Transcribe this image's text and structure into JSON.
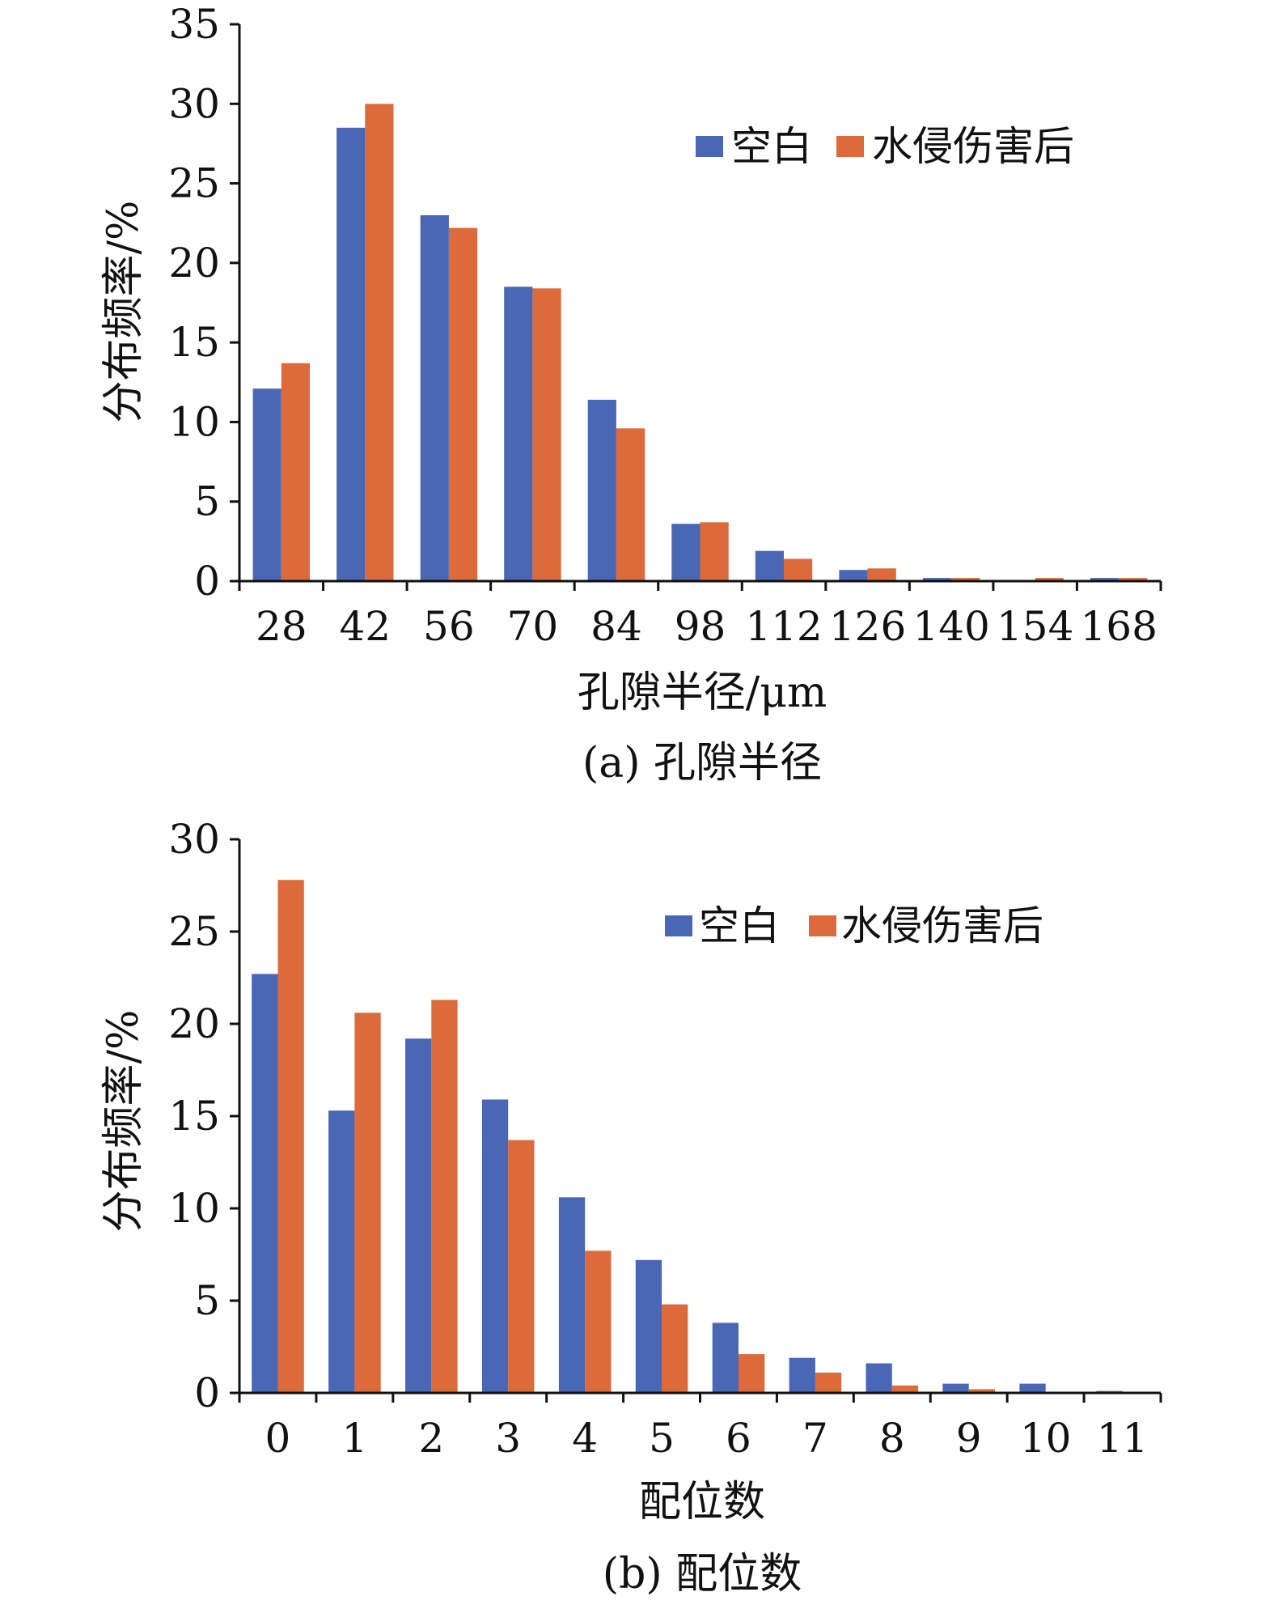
{
  "colors": {
    "blank": "#4a67b5",
    "water": "#dd6a3a",
    "axis": "#111111"
  },
  "charts": [
    {
      "caption": "(a) 孔隙半径",
      "chart_data": {
        "type": "bar",
        "categories": [
          "28",
          "42",
          "56",
          "70",
          "84",
          "98",
          "112",
          "126",
          "140",
          "154",
          "168"
        ],
        "series": [
          {
            "name": "空白",
            "values": [
              12.1,
              28.5,
              23.0,
              18.5,
              11.4,
              3.6,
              1.9,
              0.7,
              0.2,
              0.0,
              0.2
            ]
          },
          {
            "name": "水侵伤害后",
            "values": [
              13.7,
              30.0,
              22.2,
              18.4,
              9.6,
              3.7,
              1.4,
              0.8,
              0.2,
              0.2,
              0.2
            ]
          }
        ],
        "xlabel": "孔隙半径/μm",
        "ylabel": "分布频率/%",
        "ylim": [
          0,
          35
        ],
        "yticks": [
          "0",
          "5",
          "10",
          "15",
          "20",
          "25",
          "30",
          "35"
        ],
        "grid": false,
        "legend": "top-right"
      }
    },
    {
      "caption": "(b) 配位数",
      "chart_data": {
        "type": "bar",
        "categories": [
          "0",
          "1",
          "2",
          "3",
          "4",
          "5",
          "6",
          "7",
          "8",
          "9",
          "10",
          "11"
        ],
        "series": [
          {
            "name": "空白",
            "values": [
              22.7,
              15.3,
              19.2,
              15.9,
              10.6,
              7.2,
              3.8,
              1.9,
              1.6,
              0.5,
              0.5,
              0.1
            ]
          },
          {
            "name": "水侵伤害后",
            "values": [
              27.8,
              20.6,
              21.3,
              13.7,
              7.7,
              4.8,
              2.1,
              1.1,
              0.4,
              0.2,
              0.0,
              0.0
            ]
          }
        ],
        "xlabel": "配位数",
        "ylabel": "分布频率/%",
        "ylim": [
          0,
          30
        ],
        "yticks": [
          "0",
          "5",
          "10",
          "15",
          "20",
          "25",
          "30"
        ],
        "grid": false,
        "legend": "top-right"
      }
    }
  ]
}
